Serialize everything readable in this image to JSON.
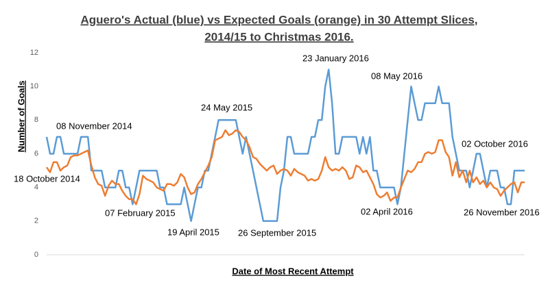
{
  "chart_data": {
    "type": "line",
    "title": [
      "Aguero's Actual (blue) vs Expected Goals (orange) in 30 Attempt Slices,",
      "2014/15 to Christmas 2016."
    ],
    "y_label": "Number of Goals",
    "x_label": "Date of Most Recent Attempt",
    "ylim": [
      0,
      12
    ],
    "yticks": [
      0,
      2,
      4,
      6,
      8,
      10,
      12
    ],
    "series": [
      {
        "color": "#5b9bd5",
        "values": [
          7,
          6,
          6,
          7,
          7,
          6,
          6,
          6,
          6,
          6,
          7,
          7,
          7,
          5,
          5,
          5,
          5,
          4,
          4,
          4,
          4,
          5,
          5,
          4,
          4,
          3,
          4,
          5,
          5,
          5,
          5,
          5,
          5,
          4,
          4,
          3,
          3,
          3,
          3,
          3,
          4,
          3,
          2,
          3,
          4,
          4,
          5,
          5,
          6,
          7,
          8,
          8,
          8,
          8,
          8,
          8,
          7,
          6,
          7,
          6,
          5,
          4,
          3,
          2,
          2,
          2,
          2,
          2,
          4,
          5,
          7,
          7,
          6,
          6,
          6,
          6,
          6,
          7,
          7,
          8,
          8,
          10,
          11,
          9,
          6,
          6,
          7,
          7,
          7,
          7,
          7,
          6,
          7,
          6,
          7,
          5,
          5,
          4,
          4,
          4,
          4,
          4,
          3,
          4,
          6,
          8,
          10,
          9,
          8,
          8,
          9,
          9,
          9,
          9,
          10,
          9,
          9,
          9,
          7,
          6,
          5,
          5,
          5,
          4,
          5,
          6,
          6,
          5,
          4,
          5,
          5,
          5,
          4,
          4,
          3,
          3,
          5,
          5,
          5,
          5
        ]
      },
      {
        "color": "#ed7d31",
        "values": [
          5.2,
          4.9,
          5.5,
          5.5,
          5.0,
          5.2,
          5.3,
          5.8,
          5.9,
          5.9,
          6.0,
          6.1,
          6.2,
          5.3,
          4.6,
          4.2,
          4.1,
          3.5,
          4.1,
          4.4,
          4.2,
          4.2,
          3.8,
          3.5,
          3.3,
          3.3,
          3.0,
          3.6,
          4.7,
          4.5,
          4.4,
          4.3,
          4.0,
          3.9,
          3.8,
          4.2,
          4.2,
          4.1,
          4.3,
          4.8,
          4.6,
          4.0,
          3.6,
          3.7,
          4.2,
          4.5,
          4.9,
          5.3,
          5.8,
          6.8,
          6.9,
          7.0,
          7.4,
          7.1,
          7.2,
          7.4,
          7.3,
          7.0,
          6.8,
          6.4,
          5.8,
          5.7,
          5.4,
          5.2,
          5.0,
          5.2,
          5.3,
          4.8,
          5.0,
          5.1,
          5.0,
          4.7,
          5.1,
          4.9,
          4.8,
          4.7,
          4.4,
          4.5,
          4.4,
          4.5,
          5.0,
          5.8,
          5.2,
          5.0,
          5.1,
          5.0,
          5.2,
          5.0,
          4.5,
          4.6,
          5.3,
          5.2,
          4.9,
          5.0,
          4.6,
          4.2,
          3.6,
          3.4,
          3.5,
          3.7,
          3.2,
          3.4,
          3.4,
          4.0,
          4.5,
          5.0,
          4.9,
          5.1,
          5.5,
          5.5,
          6.0,
          6.1,
          6.0,
          6.1,
          6.8,
          6.8,
          6.1,
          5.8,
          4.7,
          5.5,
          4.6,
          5.0,
          4.3,
          5.0,
          4.3,
          4.6,
          4.2,
          4.4,
          4.0,
          4.3,
          4.0,
          3.9,
          3.5,
          3.8,
          4.0,
          4.2,
          4.3,
          3.7,
          4.3,
          4.3
        ]
      }
    ],
    "annotations": [
      "08 November 2014",
      "18 October 2014",
      "07 February 2015",
      "19 April 2015",
      "24 May 2015",
      "26 September 2015",
      "23 January 2016",
      "08 May 2016",
      "02 April 2016",
      "02 October 2016",
      "26 November 2016"
    ]
  }
}
